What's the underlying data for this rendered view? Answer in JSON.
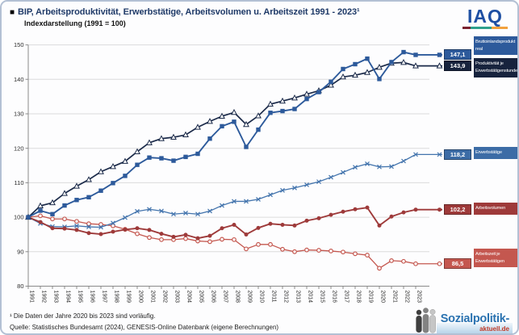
{
  "header": {
    "bullet": "■",
    "title": "BIP, Arbeitsproduktivität, Erwerbstätige, Arbeitsvolumen u. Arbeitszeit 1991 - 2023¹",
    "subtitle": "Indexdarstellung (1991 = 100)"
  },
  "logos": {
    "iaq": "IAQ",
    "sozialpolitik_main": "Sozialpolitik-",
    "sozialpolitik_sub": "aktuell.de"
  },
  "footer": {
    "footnote": "¹ Die Daten der Jahre 2020 bis 2023 sind vorläufig.",
    "source": "Quelle: Statistisches Bundesamt (2024), GENESIS-Online Datenbank (eigene Berechnungen)"
  },
  "colors": {
    "frame_border": "#b3c0d4",
    "title_text": "#1f3a68",
    "gridline": "#dcdcdc",
    "axis": "#8a8a8a",
    "tick_text": "#2b2b2b",
    "iaq_blue": "#1e4fa3",
    "iaq_maroon": "#7a2230",
    "iaq_teal": "#2ea08c",
    "iaq_orange": "#f2a13d",
    "spa_blue": "#2a72b0",
    "spa_red": "#c23b27"
  },
  "chart_data": {
    "type": "line",
    "title": "BIP, Arbeitsproduktivität, Erwerbstätige, Arbeitsvolumen u. Arbeitszeit 1991 - 2023 (Index 1991 = 100)",
    "xlabel": "",
    "ylabel": "",
    "ylim": [
      80,
      150
    ],
    "yticks": [
      80,
      90,
      100,
      110,
      120,
      130,
      140,
      150
    ],
    "grid": "horizontal",
    "legend_position": "right",
    "x": [
      1991,
      1992,
      1993,
      1994,
      1995,
      1996,
      1997,
      1998,
      1999,
      2000,
      2001,
      2002,
      2003,
      2004,
      2005,
      2006,
      2007,
      2008,
      2009,
      2010,
      2011,
      2012,
      2013,
      2014,
      2015,
      2016,
      2017,
      2018,
      2019,
      2020,
      2021,
      2022,
      2023
    ],
    "series": [
      {
        "name": "Bruttoinlandsprodukt real",
        "end_label": "147,1",
        "end_value": 147.1,
        "color": "#2d5a9b",
        "box_bg": "#2d5a9b",
        "marker": "square",
        "width": 1.9,
        "values": [
          100.0,
          101.9,
          100.9,
          103.4,
          105.0,
          105.8,
          107.7,
          109.9,
          112.0,
          115.2,
          117.3,
          117.1,
          116.4,
          117.5,
          118.4,
          122.8,
          126.4,
          127.7,
          120.4,
          125.4,
          130.3,
          130.8,
          131.4,
          134.3,
          136.3,
          139.3,
          143.0,
          144.4,
          146.0,
          140.1,
          145.0,
          147.9,
          147.1
        ]
      },
      {
        "name": "Produktivität je Erwerbstätigenstunde",
        "end_label": "143,9",
        "end_value": 143.9,
        "color": "#1c2b4a",
        "box_bg": "#17233d",
        "marker": "triangle-open",
        "width": 1.7,
        "values": [
          100.0,
          103.3,
          104.2,
          106.9,
          109.0,
          110.9,
          113.2,
          114.7,
          116.2,
          119.0,
          121.6,
          122.8,
          123.2,
          123.9,
          126.1,
          127.8,
          129.3,
          130.4,
          126.9,
          129.4,
          132.8,
          133.7,
          134.6,
          135.7,
          136.7,
          138.3,
          140.7,
          141.2,
          142.0,
          143.5,
          144.7,
          144.9,
          143.9
        ]
      },
      {
        "name": "Erwerbstätige",
        "end_label": "118,2",
        "end_value": 118.2,
        "color": "#4374ad",
        "box_bg": "#3c6ca6",
        "marker": "x",
        "width": 1.3,
        "values": [
          100.0,
          98.2,
          97.3,
          97.2,
          97.5,
          97.2,
          97.1,
          98.3,
          99.9,
          101.7,
          102.3,
          101.8,
          100.9,
          101.2,
          100.9,
          101.8,
          103.4,
          104.6,
          104.6,
          105.2,
          106.5,
          107.8,
          108.5,
          109.4,
          110.3,
          111.6,
          113.0,
          114.5,
          115.5,
          114.6,
          114.7,
          116.3,
          118.2
        ]
      },
      {
        "name": "Arbeitsvolumen",
        "end_label": "102,2",
        "end_value": 102.2,
        "color": "#9e3a3a",
        "box_bg": "#9e3a3a",
        "marker": "circle",
        "width": 1.9,
        "values": [
          100.0,
          98.6,
          96.8,
          96.7,
          96.3,
          95.4,
          95.1,
          95.8,
          96.4,
          96.8,
          96.3,
          95.2,
          94.3,
          94.9,
          93.9,
          94.6,
          96.8,
          97.8,
          95.0,
          96.9,
          98.1,
          97.8,
          97.6,
          99.0,
          99.7,
          100.7,
          101.6,
          102.3,
          102.8,
          97.6,
          100.2,
          101.4,
          102.2
        ]
      },
      {
        "name": "Arbeitszeit je Erwerbstätigen",
        "end_label": "86,5",
        "end_value": 86.5,
        "color": "#c4574f",
        "box_bg": "#c4574f",
        "marker": "circle-open",
        "width": 1.3,
        "values": [
          100.0,
          100.4,
          99.5,
          99.5,
          98.8,
          98.1,
          97.9,
          97.5,
          96.5,
          95.2,
          94.1,
          93.5,
          93.5,
          93.8,
          93.1,
          92.9,
          93.6,
          93.5,
          90.8,
          92.1,
          92.1,
          90.7,
          90.0,
          90.5,
          90.4,
          90.2,
          89.9,
          89.4,
          89.0,
          85.2,
          87.4,
          87.2,
          86.5
        ]
      }
    ]
  }
}
